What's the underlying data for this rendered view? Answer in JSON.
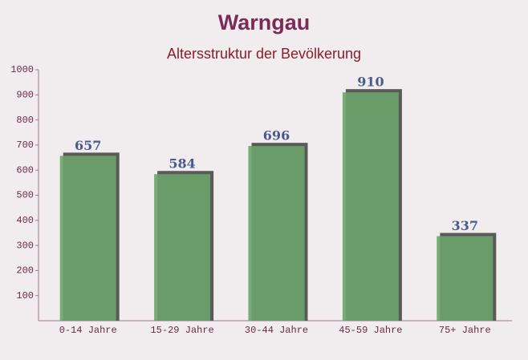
{
  "chart_data": {
    "type": "bar",
    "title": "Warngau",
    "subtitle": "Altersstruktur der Bevölkerung",
    "categories": [
      "0-14 Jahre",
      "15-29 Jahre",
      "30-44 Jahre",
      "45-59 Jahre",
      "75+ Jahre"
    ],
    "values": [
      657,
      584,
      696,
      910,
      337
    ],
    "color": "#6aa36a",
    "ylim": [
      0,
      1000
    ],
    "yticks": [
      100,
      200,
      300,
      400,
      500,
      600,
      700,
      800,
      900,
      1000
    ],
    "grid": false
  }
}
